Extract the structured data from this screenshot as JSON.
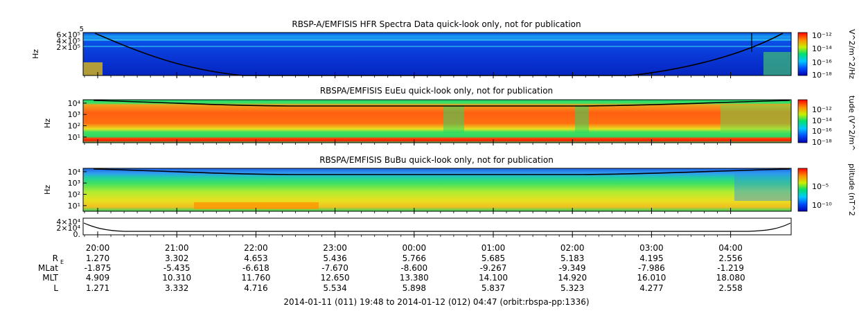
{
  "chart_data": [
    {
      "type": "heatmap",
      "title": "RBSP-A/EMFISIS  HFR Spectra Data quick-look only, not for publication",
      "ylabel": "Hz",
      "yticks": [
        "6×10⁵",
        "4×10⁵",
        "2×10⁵",
        "5"
      ],
      "colorbar_label": "V^2/m^2/Hz",
      "colorbar_ticks": [
        "10⁻¹²",
        "10⁻¹⁴",
        "10⁻¹⁶",
        "10⁻¹⁸"
      ],
      "colorbar_range_exp": [
        -18,
        -12
      ],
      "overlay": "black curve (local plasma line)"
    },
    {
      "type": "heatmap",
      "title": "RBSPA/EMFISIS  EuEu quick-look only, not for publication",
      "ylabel": "Hz",
      "yticks": [
        "10⁴",
        "10³",
        "10²",
        "10¹"
      ],
      "yticks_exp": [
        4,
        3,
        2,
        1
      ],
      "colorbar_label": "tude (V^2/m^",
      "colorbar_ticks": [
        "10⁻¹²",
        "10⁻¹⁴",
        "10⁻¹⁶",
        "10⁻¹⁸"
      ],
      "colorbar_range_exp": [
        -18,
        -12
      ]
    },
    {
      "type": "heatmap",
      "title": "RBSPA/EMFISIS  BuBu quick-look only, not for publication",
      "ylabel": "Hz",
      "yticks": [
        "10⁴",
        "10³",
        "10²",
        "10¹"
      ],
      "yticks_exp": [
        4,
        3,
        2,
        1
      ],
      "colorbar_label": "plitude (nT^2",
      "colorbar_ticks": [
        "10⁻⁵",
        "10⁻¹⁰"
      ],
      "colorbar_range_exp": [
        -12,
        -3
      ]
    },
    {
      "type": "line",
      "yticks": [
        "4×10⁴",
        "2×10⁴",
        "0."
      ],
      "ylim": [
        0,
        40000
      ]
    }
  ],
  "time_ticks": [
    "20:00",
    "21:00",
    "22:00",
    "23:00",
    "00:00",
    "01:00",
    "02:00",
    "03:00",
    "04:00"
  ],
  "ephemeris": {
    "labels": [
      "R",
      "MLat",
      "MLT",
      "L"
    ],
    "r_subscript": "E",
    "rows": {
      "R": [
        "1.270",
        "3.302",
        "4.653",
        "5.436",
        "5.766",
        "5.685",
        "5.183",
        "4.195",
        "2.556"
      ],
      "MLat": [
        "-1.875",
        "-5.435",
        "-6.618",
        "-7.670",
        "-8.600",
        "-9.267",
        "-9.349",
        "-7.986",
        "-1.219"
      ],
      "MLT": [
        "4.909",
        "10.310",
        "11.760",
        "12.650",
        "13.380",
        "14.100",
        "14.920",
        "16.010",
        "18.080"
      ],
      "L": [
        "1.271",
        "3.332",
        "4.716",
        "5.534",
        "5.898",
        "5.837",
        "5.323",
        "4.277",
        "2.558"
      ]
    }
  },
  "footer": "2014-01-11 (011) 19:48 to 2014-01-12 (012) 04:47 (orbit:rbspa-pp:1336)",
  "colors": {
    "background": "#ffffff",
    "colormap": [
      "#0000c8",
      "#0060ff",
      "#00d0ff",
      "#00e060",
      "#f0f000",
      "#ff8000",
      "#ff0000"
    ]
  }
}
